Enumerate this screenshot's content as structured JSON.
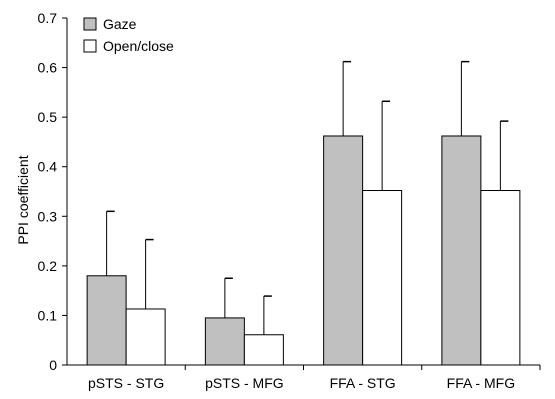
{
  "chart_data": {
    "type": "bar",
    "title": "",
    "xlabel": "",
    "ylabel": "PPI coefficient",
    "ylim": [
      0,
      0.7
    ],
    "yticks": [
      0,
      0.1,
      0.2,
      0.3,
      0.4,
      0.5,
      0.6,
      0.7
    ],
    "ytick_labels": [
      "0",
      "0.1",
      "0.2",
      "0.3",
      "0.4",
      "0.5",
      "0.6",
      "0.7"
    ],
    "categories": [
      "pSTS - STG",
      "pSTS - MFG",
      "FFA - STG",
      "FFA - MFG"
    ],
    "series": [
      {
        "name": "Gaze",
        "color": "#c0c0c0",
        "values": [
          0.18,
          0.095,
          0.462,
          0.462
        ],
        "error_upper": [
          0.13,
          0.08,
          0.15,
          0.15
        ]
      },
      {
        "name": "Open/close",
        "color": "#ffffff",
        "values": [
          0.113,
          0.061,
          0.352,
          0.352
        ],
        "error_upper": [
          0.14,
          0.078,
          0.18,
          0.14
        ]
      }
    ],
    "legend": "top-left",
    "grid": false,
    "error_bars": "upper only"
  }
}
